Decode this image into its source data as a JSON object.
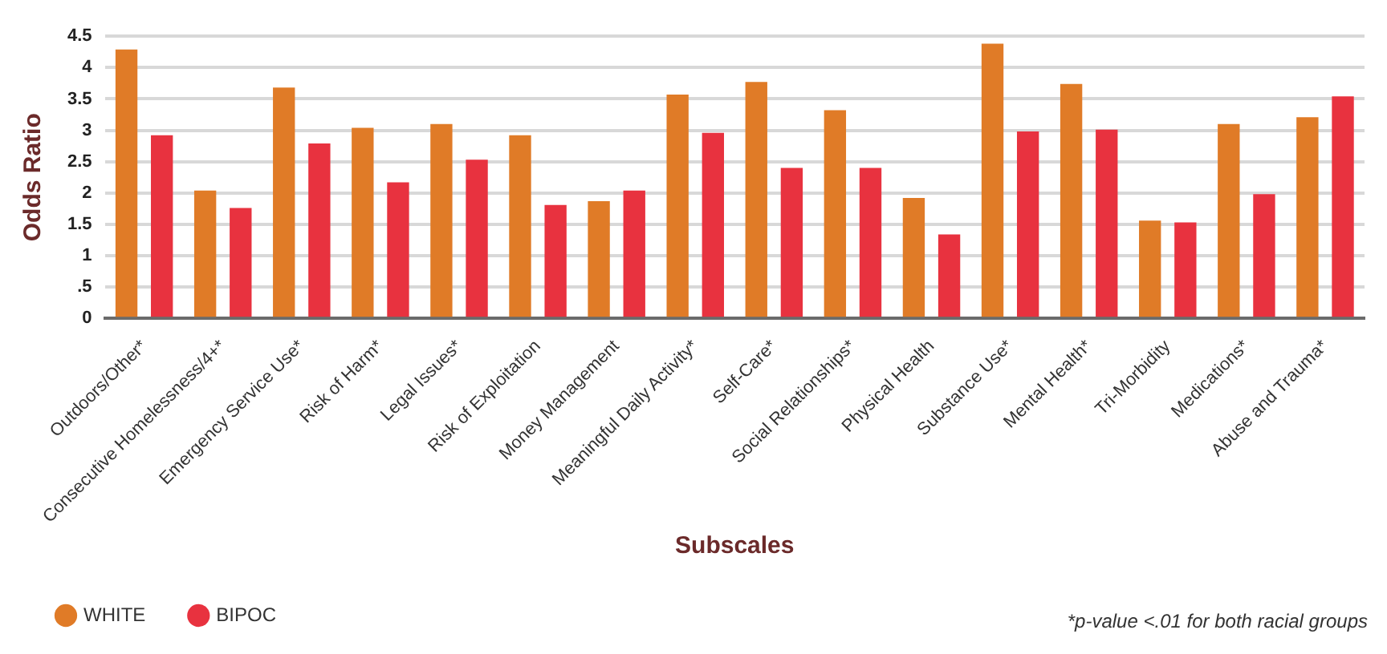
{
  "chart_data": {
    "type": "bar",
    "xlabel": "Subscales",
    "ylabel": "Odds Ratio",
    "categories": [
      "Outdoors/Other*",
      "Consecutive Homelessness/4+*",
      "Emergency Service Use*",
      "Risk of Harm*",
      "Legal Issues*",
      "Risk of Exploitation",
      "Money Management",
      "Meaningful Daily Activity*",
      "Self-Care*",
      "Social Relationships*",
      "Physical Health",
      "Substance Use*",
      "Mental Health*",
      "Tri-Morbidity",
      "Medications*",
      "Abuse and Trauma*"
    ],
    "series": [
      {
        "name": "WHITE",
        "color": "#e07b27",
        "values": [
          4.29,
          2.04,
          3.68,
          3.04,
          3.1,
          2.92,
          1.87,
          3.57,
          3.77,
          3.32,
          1.92,
          4.38,
          3.74,
          1.56,
          3.1,
          3.21
        ]
      },
      {
        "name": "BIPOC",
        "color": "#e8323f",
        "values": [
          2.92,
          1.76,
          2.79,
          2.17,
          2.53,
          1.81,
          2.04,
          2.96,
          2.4,
          2.4,
          1.34,
          2.98,
          3.01,
          1.53,
          1.98,
          3.54
        ]
      }
    ],
    "ylim": [
      0,
      4.5
    ],
    "yticks": [
      0,
      {
        "value": 0.5,
        "label": ".5"
      },
      1,
      1.5,
      2,
      2.5,
      3,
      3.5,
      4,
      4.5
    ],
    "grid": "y",
    "legend": "bottom left",
    "annotations": [
      "*p-value <.01 for both racial groups"
    ]
  }
}
